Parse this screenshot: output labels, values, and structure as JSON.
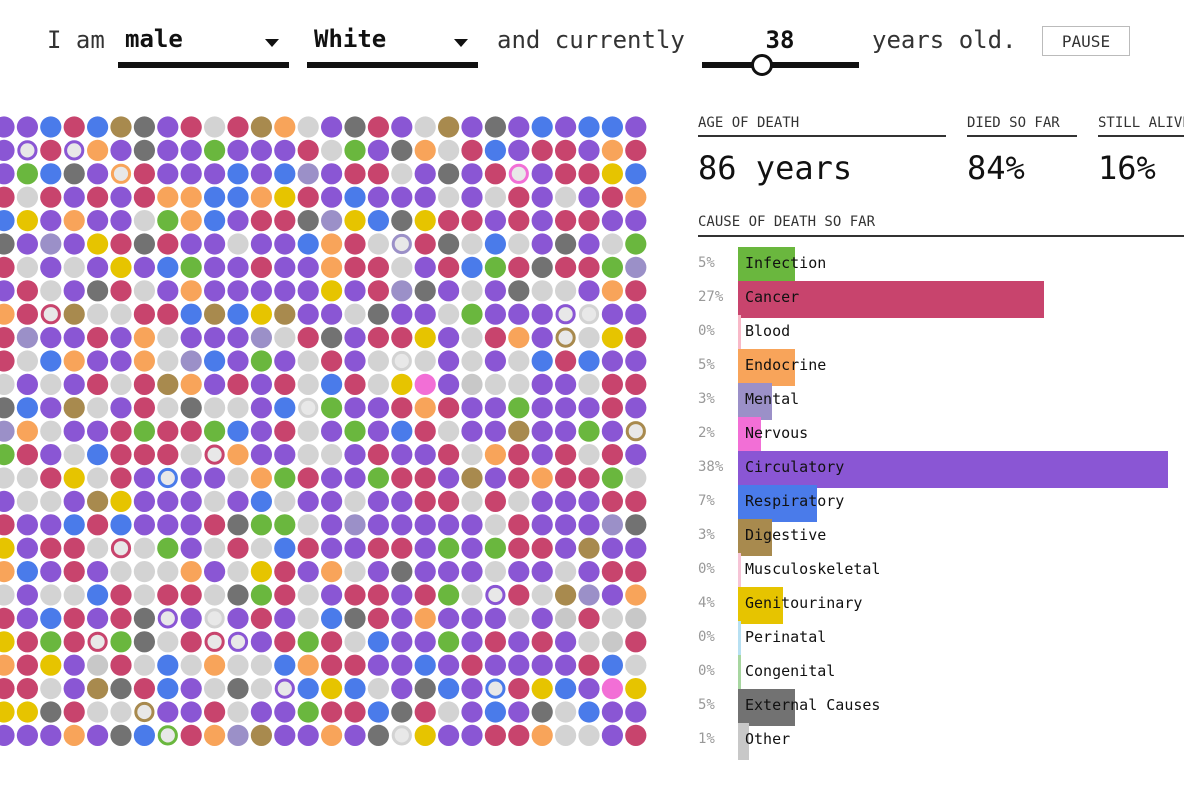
{
  "controls": {
    "prefix": "I am",
    "sex": "male",
    "race": "White",
    "mid": "and currently",
    "age": "38",
    "age_range": [
      0,
      100
    ],
    "suffix": "years old.",
    "pause_label": "PAUSE"
  },
  "stats": {
    "age_of_death_label": "AGE OF DEATH",
    "age_of_death_value": "86 years",
    "died_label": "DIED SO FAR",
    "died_value": "84%",
    "alive_label": "STILL ALIVE",
    "alive_value": "16%"
  },
  "causes_title": "CAUSE OF DEATH SO FAR",
  "colors": {
    "alive": "#d3d3d3",
    "Infection": "#6ab73e",
    "Cancer": "#c8446d",
    "Blood": "#f8b9c8",
    "Endocrine": "#f8a45a",
    "Mental": "#9b90c8",
    "Nervous": "#f26fd6",
    "Circulatory": "#8a56d4",
    "Respiratory": "#4a7bea",
    "Digestive": "#a88a4e",
    "Musculoskeletal": "#f6c4d6",
    "Genitourinary": "#e6c400",
    "Perinatal": "#b7e0f2",
    "Congenital": "#a7d6a0",
    "External Causes": "#727272",
    "Other": "#c8c8c8"
  },
  "causes": [
    {
      "name": "Infection",
      "pct": 5
    },
    {
      "name": "Cancer",
      "pct": 27
    },
    {
      "name": "Blood",
      "pct": 0
    },
    {
      "name": "Endocrine",
      "pct": 5
    },
    {
      "name": "Mental",
      "pct": 3
    },
    {
      "name": "Nervous",
      "pct": 2
    },
    {
      "name": "Circulatory",
      "pct": 38
    },
    {
      "name": "Respiratory",
      "pct": 7
    },
    {
      "name": "Digestive",
      "pct": 3
    },
    {
      "name": "Musculoskeletal",
      "pct": 0
    },
    {
      "name": "Genitourinary",
      "pct": 4
    },
    {
      "name": "Perinatal",
      "pct": 0
    },
    {
      "name": "Congenital",
      "pct": 0
    },
    {
      "name": "External Causes",
      "pct": 5
    },
    {
      "name": "Other",
      "pct": 1
    }
  ]
}
